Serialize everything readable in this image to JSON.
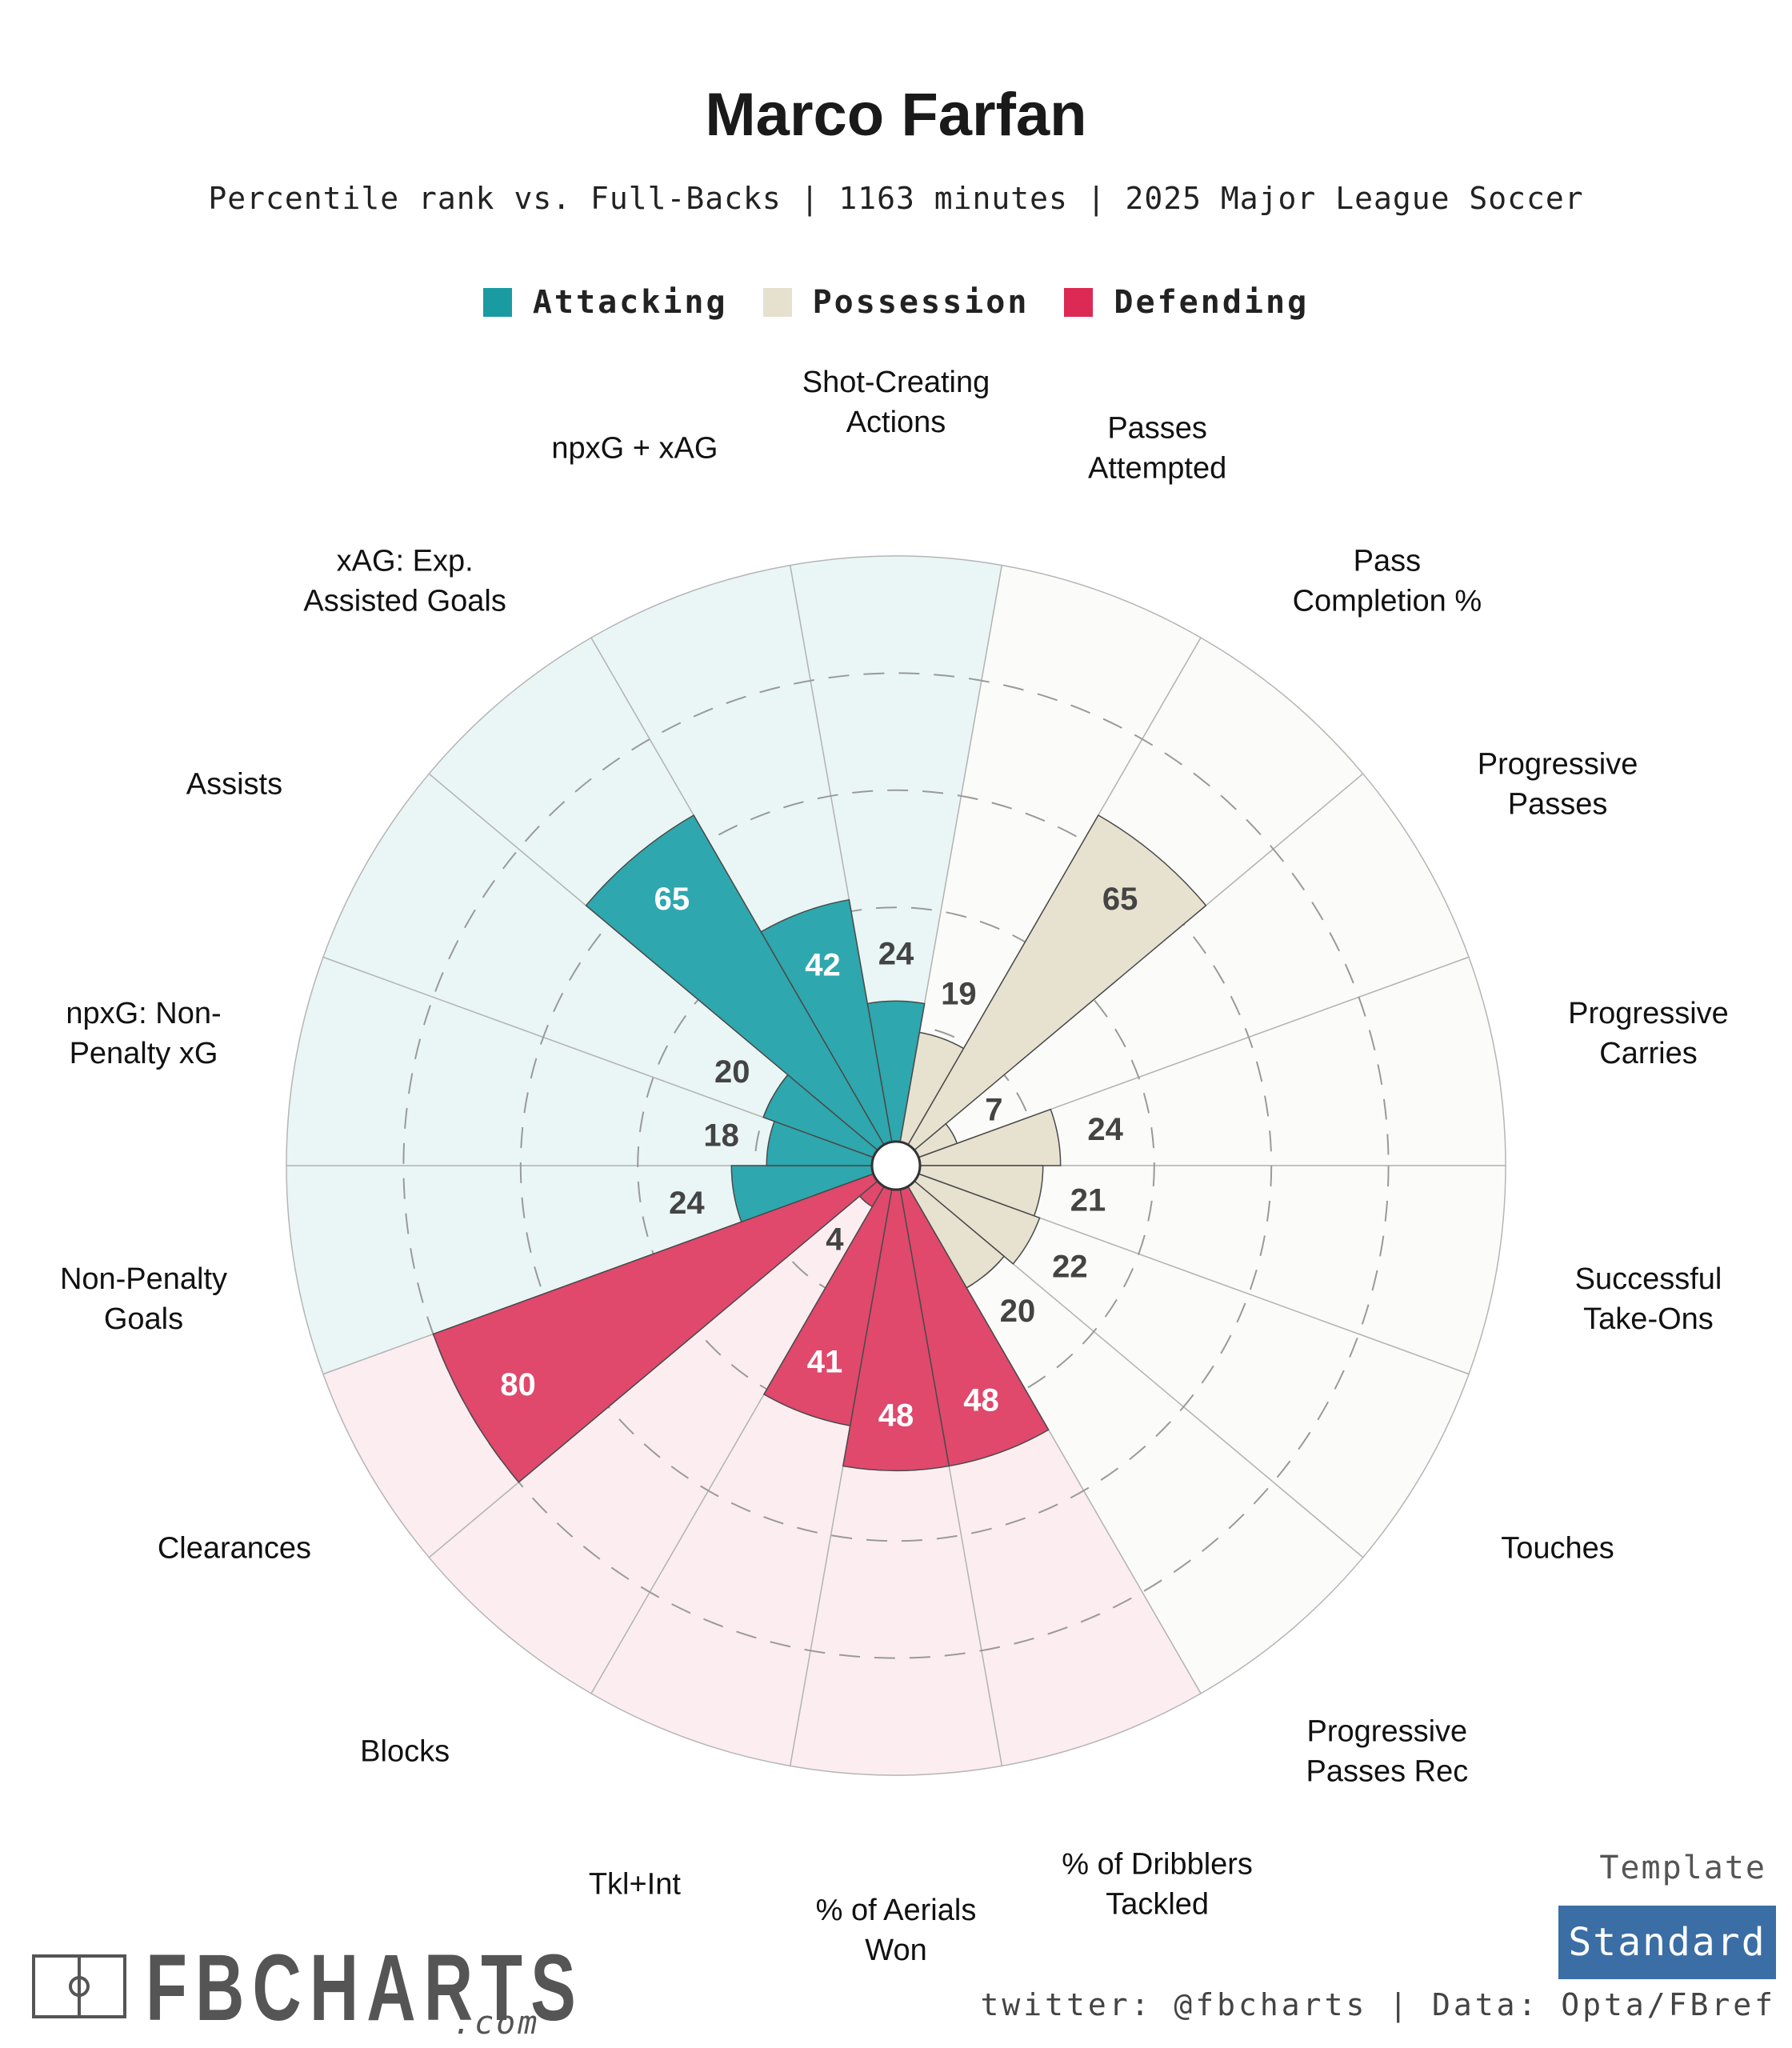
{
  "header": {
    "title": "Marco Farfan",
    "subtitle": "Percentile rank vs. Full-Backs | 1163 minutes | 2025 Major League Soccer"
  },
  "legend": [
    {
      "label": "Attacking",
      "color": "#1a9ba1"
    },
    {
      "label": "Possession",
      "color": "#e6e0cf"
    },
    {
      "label": "Defending",
      "color": "#dc2a54"
    }
  ],
  "chart_data": {
    "type": "polar-bar",
    "title": "Marco Farfan",
    "subtitle": "Percentile rank vs. Full-Backs | 1163 minutes | 2025 Major League Soccer",
    "rlim": [
      0,
      100
    ],
    "grid": "dashed rings at 20,40,60,80",
    "categories": [
      {
        "label": "Shot-Creating\nActions",
        "value": 24,
        "group": "Attacking"
      },
      {
        "label": "Passes\nAttempted",
        "value": 19,
        "group": "Possession"
      },
      {
        "label": "Pass\nCompletion %",
        "value": 65,
        "group": "Possession"
      },
      {
        "label": "Progressive\nPasses",
        "value": 7,
        "group": "Possession"
      },
      {
        "label": "Progressive\nCarries",
        "value": 24,
        "group": "Possession"
      },
      {
        "label": "Successful\nTake-Ons",
        "value": 21,
        "group": "Possession"
      },
      {
        "label": "Touches",
        "value": 22,
        "group": "Possession"
      },
      {
        "label": "Progressive\nPasses Rec",
        "value": 20,
        "group": "Possession"
      },
      {
        "label": "% of Dribblers\nTackled",
        "value": 48,
        "group": "Defending"
      },
      {
        "label": "% of Aerials\nWon",
        "value": 48,
        "group": "Defending"
      },
      {
        "label": "Tkl+Int",
        "value": 41,
        "group": "Defending"
      },
      {
        "label": "Blocks",
        "value": 4,
        "group": "Defending"
      },
      {
        "label": "Clearances",
        "value": 80,
        "group": "Defending"
      },
      {
        "label": "Non-Penalty\nGoals",
        "value": 24,
        "group": "Attacking"
      },
      {
        "label": "npxG: Non-\nPenalty xG",
        "value": 18,
        "group": "Attacking"
      },
      {
        "label": "Assists",
        "value": 20,
        "group": "Attacking"
      },
      {
        "label": "xAG: Exp.\nAssisted Goals",
        "value": 65,
        "group": "Attacking"
      },
      {
        "label": "npxG + xAG",
        "value": 42,
        "group": "Attacking"
      }
    ],
    "group_colors": {
      "Attacking": {
        "bar": "#2ea7ae",
        "background": "#e9f6f5"
      },
      "Possession": {
        "bar": "#e7e1d0",
        "background": "#fbfbf9"
      },
      "Defending": {
        "bar": "#e0486c",
        "background": "#fcedf1"
      }
    }
  },
  "footer": {
    "brand": "FBCHARTS",
    "brand_suffix": ".com",
    "template_label": "Template",
    "template_value": "Standard",
    "credit": "twitter: @fbcharts | Data: Opta/FBref"
  }
}
